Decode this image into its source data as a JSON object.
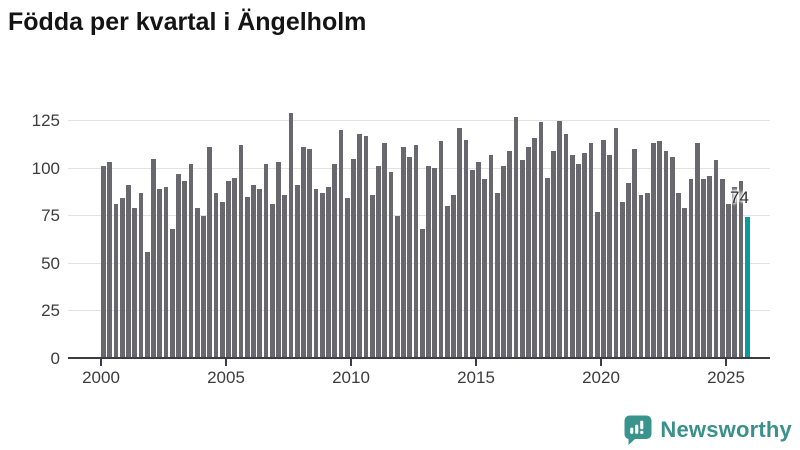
{
  "page": {
    "title": "Födda per kvartal i Ängelholm"
  },
  "chart_data": {
    "type": "bar",
    "title": "Födda per kvartal i Ängelholm",
    "xlabel": "",
    "ylabel": "",
    "ylim": [
      0,
      132
    ],
    "grid": true,
    "legend": "none",
    "yticks": [
      0,
      25,
      50,
      75,
      100,
      125
    ],
    "xtick_years": [
      "2000",
      "2005",
      "2010",
      "2015",
      "2020",
      "2025"
    ],
    "categories": [
      "2000 Q1",
      "2000 Q2",
      "2000 Q3",
      "2000 Q4",
      "2001 Q1",
      "2001 Q2",
      "2001 Q3",
      "2001 Q4",
      "2002 Q1",
      "2002 Q2",
      "2002 Q3",
      "2002 Q4",
      "2003 Q1",
      "2003 Q2",
      "2003 Q3",
      "2003 Q4",
      "2004 Q1",
      "2004 Q2",
      "2004 Q3",
      "2004 Q4",
      "2005 Q1",
      "2005 Q2",
      "2005 Q3",
      "2005 Q4",
      "2006 Q1",
      "2006 Q2",
      "2006 Q3",
      "2006 Q4",
      "2007 Q1",
      "2007 Q2",
      "2007 Q3",
      "2007 Q4",
      "2008 Q1",
      "2008 Q2",
      "2008 Q3",
      "2008 Q4",
      "2009 Q1",
      "2009 Q2",
      "2009 Q3",
      "2009 Q4",
      "2010 Q1",
      "2010 Q2",
      "2010 Q3",
      "2010 Q4",
      "2011 Q1",
      "2011 Q2",
      "2011 Q3",
      "2011 Q4",
      "2012 Q1",
      "2012 Q2",
      "2012 Q3",
      "2012 Q4",
      "2013 Q1",
      "2013 Q2",
      "2013 Q3",
      "2013 Q4",
      "2014 Q1",
      "2014 Q2",
      "2014 Q3",
      "2014 Q4",
      "2015 Q1",
      "2015 Q2",
      "2015 Q3",
      "2015 Q4",
      "2016 Q1",
      "2016 Q2",
      "2016 Q3",
      "2016 Q4",
      "2017 Q1",
      "2017 Q2",
      "2017 Q3",
      "2017 Q4",
      "2018 Q1",
      "2018 Q2",
      "2018 Q3",
      "2018 Q4",
      "2019 Q1",
      "2019 Q2",
      "2019 Q3",
      "2019 Q4",
      "2020 Q1",
      "2020 Q2",
      "2020 Q3",
      "2020 Q4",
      "2021 Q1",
      "2021 Q2",
      "2021 Q3",
      "2021 Q4",
      "2022 Q1",
      "2022 Q2",
      "2022 Q3",
      "2022 Q4",
      "2023 Q1",
      "2023 Q2",
      "2023 Q3",
      "2023 Q4",
      "2024 Q1",
      "2024 Q2",
      "2024 Q3",
      "2024 Q4",
      "2025 Q1",
      "2025 Q2",
      "2025 Q3",
      "2025 Q4"
    ],
    "values": [
      101,
      103,
      81,
      84,
      91,
      79,
      87,
      56,
      105,
      89,
      90,
      68,
      97,
      93,
      102,
      79,
      75,
      111,
      87,
      82,
      93,
      95,
      112,
      85,
      91,
      89,
      102,
      81,
      103,
      86,
      129,
      91,
      111,
      110,
      89,
      87,
      90,
      102,
      120,
      84,
      105,
      118,
      117,
      86,
      101,
      113,
      98,
      75,
      111,
      106,
      112,
      68,
      101,
      100,
      114,
      80,
      86,
      121,
      115,
      99,
      103,
      94,
      107,
      87,
      101,
      109,
      127,
      104,
      111,
      116,
      124,
      95,
      109,
      125,
      118,
      107,
      102,
      108,
      113,
      77,
      115,
      107,
      121,
      82,
      92,
      110,
      86,
      87,
      113,
      114,
      109,
      106,
      87,
      79,
      94,
      113,
      94,
      96,
      104,
      94,
      81,
      90,
      93,
      74
    ],
    "highlight": {
      "index": 103,
      "label": "74",
      "color": "#089c9c"
    },
    "colors": {
      "bar": "#68686e",
      "highlight_bar": "#089c9c",
      "grid": "#e2e2e2",
      "axis": "#3c3c44",
      "tick_text": "#3d3d3d",
      "title_text": "#141414"
    }
  },
  "annotation": {
    "last_value": "74"
  },
  "branding": {
    "label": "Newsworthy",
    "icon": "newsworthy-speech-bubble-chart-icon",
    "color": "#3a908a"
  }
}
